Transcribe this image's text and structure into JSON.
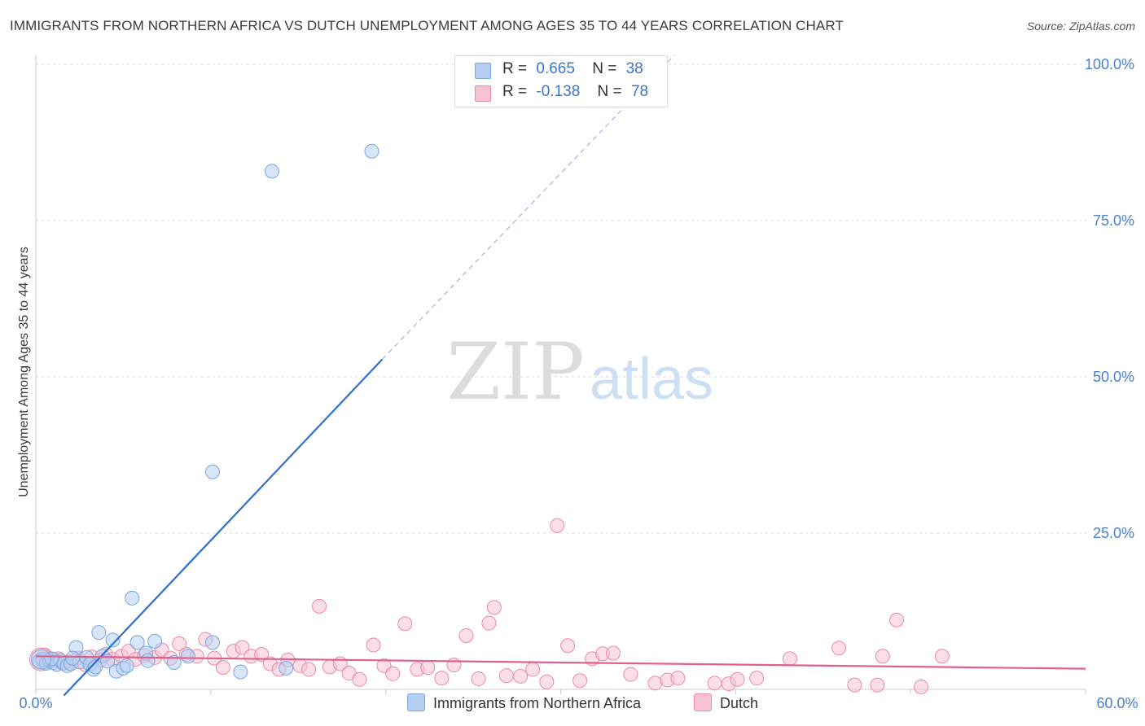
{
  "title": "IMMIGRANTS FROM NORTHERN AFRICA VS DUTCH UNEMPLOYMENT AMONG AGES 35 TO 44 YEARS CORRELATION CHART",
  "source": "Source: ZipAtlas.com",
  "watermark": {
    "zip": "ZIP",
    "atlas": "atlas"
  },
  "legend": {
    "rows": [
      {
        "r_label": "R =",
        "r_value": "0.665",
        "n_label": "N =",
        "n_value": "38"
      },
      {
        "r_label": "R =",
        "r_value": "-0.138",
        "n_label": "N =",
        "n_value": "78"
      }
    ]
  },
  "bottom_legend": {
    "series1": "Immigrants from Northern Africa",
    "series2": "Dutch"
  },
  "colors": {
    "blue_fill": "#b5cff3",
    "blue_stroke": "#7ba6e0",
    "blue_line": "#2f6fd0",
    "pink_fill": "#f7c3d4",
    "pink_stroke": "#e98aa8",
    "pink_line": "#e0608c",
    "tick_text": "#4a7fd0"
  },
  "chart_data": {
    "type": "scatter",
    "title": "IMMIGRANTS FROM NORTHERN AFRICA VS DUTCH UNEMPLOYMENT AMONG AGES 35 TO 44 YEARS CORRELATION CHART",
    "xlabel": "",
    "ylabel": "Unemployment Among Ages 35 to 44 years",
    "xlim": [
      0,
      60
    ],
    "ylim": [
      0,
      100
    ],
    "x_tick_labels": [
      "0.0%",
      "60.0%"
    ],
    "y_ticks": [
      25,
      50,
      75,
      100
    ],
    "y_tick_labels": [
      "25.0%",
      "50.0%",
      "75.0%",
      "100.0%"
    ],
    "grid": true,
    "series": [
      {
        "name": "Immigrants from Northern Africa",
        "R": 0.665,
        "N": 38,
        "trend": {
          "x0": 1.6,
          "y0": -1.0,
          "x1": 19.8,
          "y1": 52.8,
          "dash_x1": 36.5,
          "dash_y1": 101.5
        },
        "points": [
          [
            0.2,
            4.5
          ],
          [
            0.4,
            4.8
          ],
          [
            0.6,
            4.2
          ],
          [
            0.8,
            4.6
          ],
          [
            1.0,
            4.3
          ],
          [
            1.2,
            4.0
          ],
          [
            1.4,
            4.6
          ],
          [
            1.6,
            4.2
          ],
          [
            1.8,
            3.8
          ],
          [
            2.0,
            4.1
          ],
          [
            2.3,
            6.7
          ],
          [
            2.5,
            4.4
          ],
          [
            2.9,
            5.1
          ],
          [
            3.1,
            4.0
          ],
          [
            3.3,
            3.2
          ],
          [
            3.6,
            9.1
          ],
          [
            3.8,
            5.3
          ],
          [
            4.1,
            4.5
          ],
          [
            4.4,
            7.9
          ],
          [
            4.6,
            2.9
          ],
          [
            5.0,
            3.4
          ],
          [
            5.5,
            14.6
          ],
          [
            5.8,
            7.5
          ],
          [
            6.3,
            5.8
          ],
          [
            6.4,
            4.6
          ],
          [
            6.8,
            7.7
          ],
          [
            7.9,
            4.3
          ],
          [
            8.7,
            5.3
          ],
          [
            10.1,
            7.5
          ],
          [
            10.1,
            34.8
          ],
          [
            11.7,
            2.8
          ],
          [
            13.5,
            82.9
          ],
          [
            14.3,
            3.4
          ],
          [
            19.2,
            86.1
          ],
          [
            0.9,
            4.9
          ],
          [
            2.1,
            5.0
          ],
          [
            3.4,
            3.6
          ],
          [
            5.2,
            3.8
          ]
        ]
      },
      {
        "name": "Dutch",
        "R": -0.138,
        "N": 78,
        "trend": {
          "x0": 0,
          "y0": 5.3,
          "x1": 60,
          "y1": 3.3
        },
        "points": [
          [
            0.3,
            4.8
          ],
          [
            0.7,
            5.0
          ],
          [
            1.1,
            4.6
          ],
          [
            1.5,
            4.2
          ],
          [
            1.9,
            4.4
          ],
          [
            2.4,
            5.0
          ],
          [
            2.8,
            4.0
          ],
          [
            3.2,
            5.2
          ],
          [
            3.7,
            4.7
          ],
          [
            4.0,
            5.6
          ],
          [
            4.4,
            4.8
          ],
          [
            4.9,
            5.3
          ],
          [
            5.3,
            6.1
          ],
          [
            5.7,
            4.8
          ],
          [
            6.2,
            5.4
          ],
          [
            6.8,
            5.1
          ],
          [
            7.2,
            6.3
          ],
          [
            7.7,
            5.0
          ],
          [
            8.2,
            7.3
          ],
          [
            8.6,
            5.6
          ],
          [
            9.2,
            5.3
          ],
          [
            9.7,
            8.0
          ],
          [
            10.2,
            5.0
          ],
          [
            10.7,
            3.5
          ],
          [
            11.3,
            6.1
          ],
          [
            11.8,
            6.7
          ],
          [
            12.3,
            5.3
          ],
          [
            12.9,
            5.6
          ],
          [
            13.4,
            4.1
          ],
          [
            13.9,
            3.2
          ],
          [
            14.4,
            4.7
          ],
          [
            15.1,
            3.8
          ],
          [
            15.6,
            3.2
          ],
          [
            16.2,
            13.3
          ],
          [
            16.8,
            3.6
          ],
          [
            17.4,
            4.1
          ],
          [
            17.9,
            2.6
          ],
          [
            18.5,
            1.6
          ],
          [
            19.3,
            7.1
          ],
          [
            19.9,
            3.8
          ],
          [
            20.4,
            2.5
          ],
          [
            21.1,
            10.5
          ],
          [
            21.8,
            3.2
          ],
          [
            22.4,
            3.5
          ],
          [
            23.2,
            1.8
          ],
          [
            23.9,
            3.9
          ],
          [
            24.6,
            8.6
          ],
          [
            25.3,
            1.7
          ],
          [
            25.9,
            10.6
          ],
          [
            26.2,
            13.1
          ],
          [
            26.9,
            2.2
          ],
          [
            27.7,
            2.1
          ],
          [
            28.4,
            3.2
          ],
          [
            29.2,
            1.2
          ],
          [
            29.8,
            26.2
          ],
          [
            30.4,
            7.0
          ],
          [
            31.1,
            1.4
          ],
          [
            31.8,
            4.9
          ],
          [
            32.4,
            5.7
          ],
          [
            33.0,
            5.8
          ],
          [
            34.0,
            2.4
          ],
          [
            35.4,
            1.0
          ],
          [
            36.1,
            1.5
          ],
          [
            36.7,
            1.8
          ],
          [
            38.8,
            1.0
          ],
          [
            39.6,
            0.9
          ],
          [
            40.1,
            1.6
          ],
          [
            41.2,
            1.8
          ],
          [
            43.1,
            4.9
          ],
          [
            45.9,
            6.6
          ],
          [
            46.8,
            0.7
          ],
          [
            48.1,
            0.7
          ],
          [
            48.4,
            5.3
          ],
          [
            49.2,
            11.1
          ],
          [
            50.6,
            0.4
          ],
          [
            51.8,
            5.3
          ],
          [
            0.5,
            5.5
          ],
          [
            1.3,
            4.9
          ]
        ]
      }
    ]
  }
}
